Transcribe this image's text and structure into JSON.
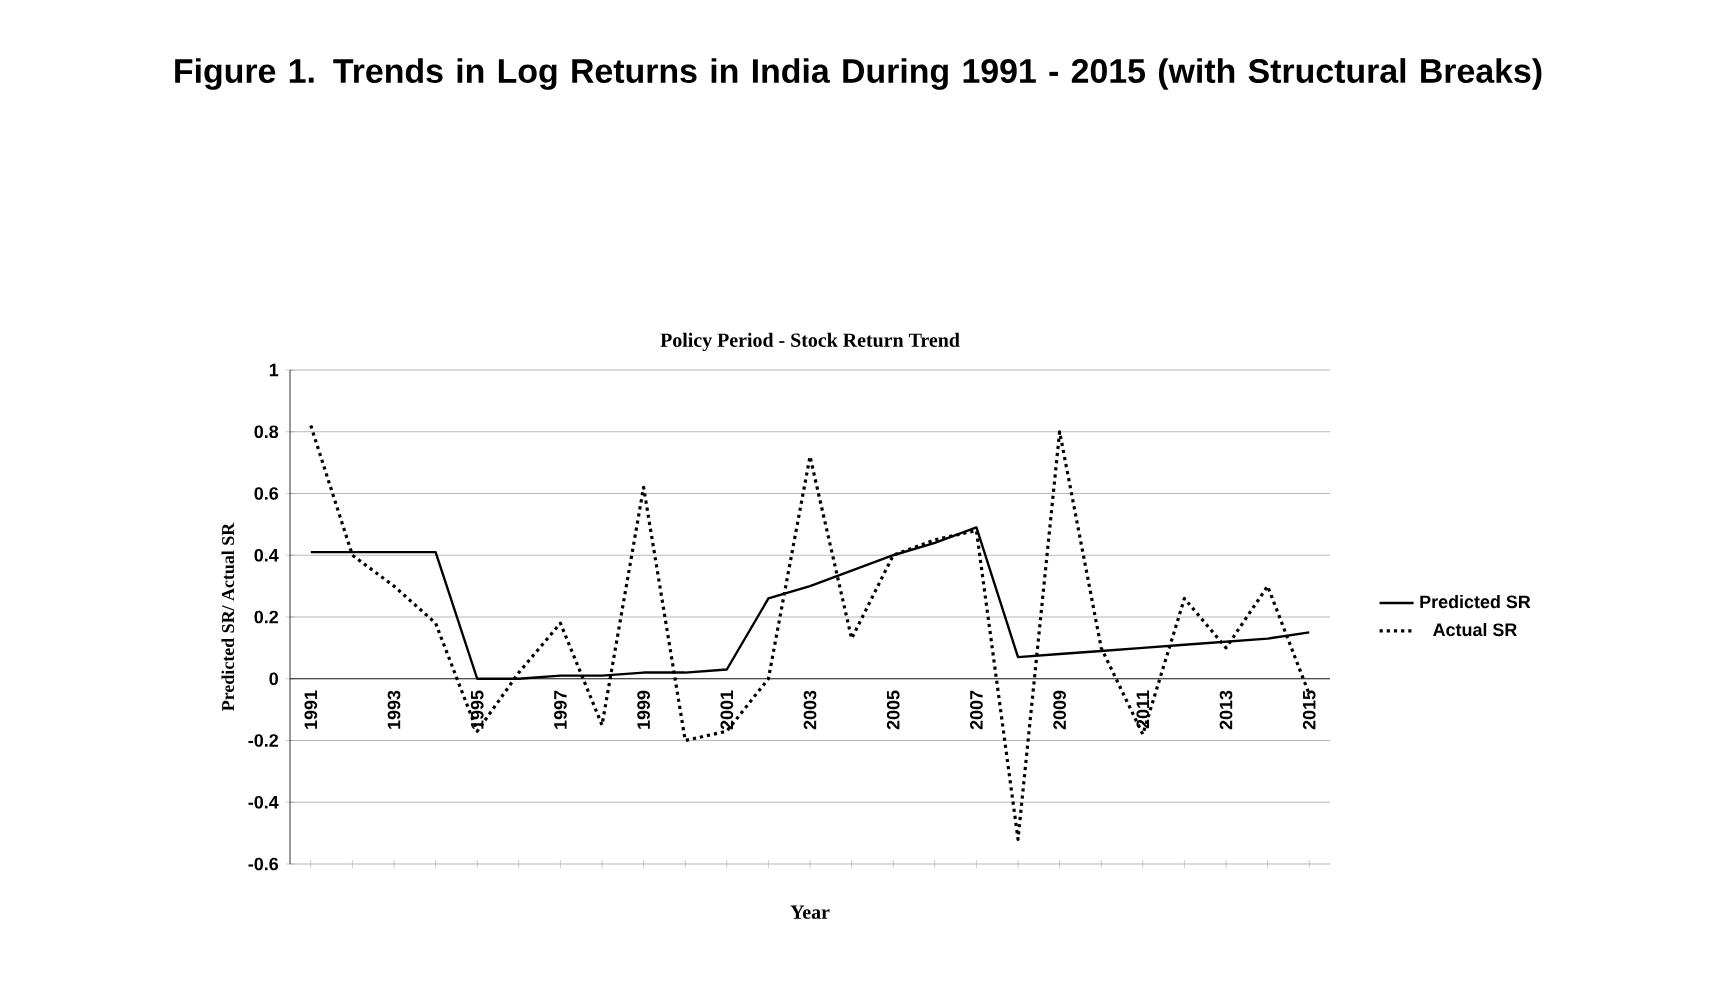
{
  "chart_data": {
    "type": "line",
    "title": "Figure 1. Trends in Log Returns in India During 1991 - 2015 (with Structural Breaks)",
    "subtitle": "Policy Period - Stock Return Trend",
    "xlabel": "Year",
    "ylabel": "Predicted SR/ Actual SR",
    "categories": [
      "1991",
      null,
      "1993",
      null,
      "1995",
      null,
      "1997",
      null,
      "1999",
      null,
      "2001",
      null,
      "2003",
      null,
      "2005",
      null,
      "2007",
      null,
      "2009",
      null,
      "2011",
      null,
      "2013",
      null,
      "2015"
    ],
    "ylim": [
      -0.6,
      1
    ],
    "yticks": [
      -0.6,
      -0.4,
      -0.2,
      0,
      0.2,
      0.4,
      0.6,
      0.8,
      1
    ],
    "grid": "y",
    "legend": "right",
    "marker": "none",
    "series": [
      {
        "name": "Predicted SR",
        "color": "#000000",
        "line_style": "solid",
        "values": [
          0.41,
          0.41,
          0.41,
          0.41,
          0,
          0,
          0.01,
          0.01,
          0.02,
          0.02,
          0.03,
          0.26,
          0.3,
          0.35,
          0.4,
          0.44,
          0.49,
          0.07,
          0.08,
          0.09,
          0.1,
          0.11,
          0.12,
          0.13,
          0.15
        ]
      },
      {
        "name": "Actual SR",
        "color": "#000000",
        "line_style": "dotted",
        "values": [
          0.82,
          0.4,
          0.3,
          0.18,
          -0.17,
          0.02,
          0.18,
          -0.15,
          0.62,
          -0.2,
          -0.17,
          0.0,
          0.72,
          0.13,
          0.4,
          0.45,
          0.48,
          -0.52,
          0.8,
          0.1,
          -0.18,
          0.26,
          0.1,
          0.3,
          -0.05
        ]
      }
    ]
  }
}
